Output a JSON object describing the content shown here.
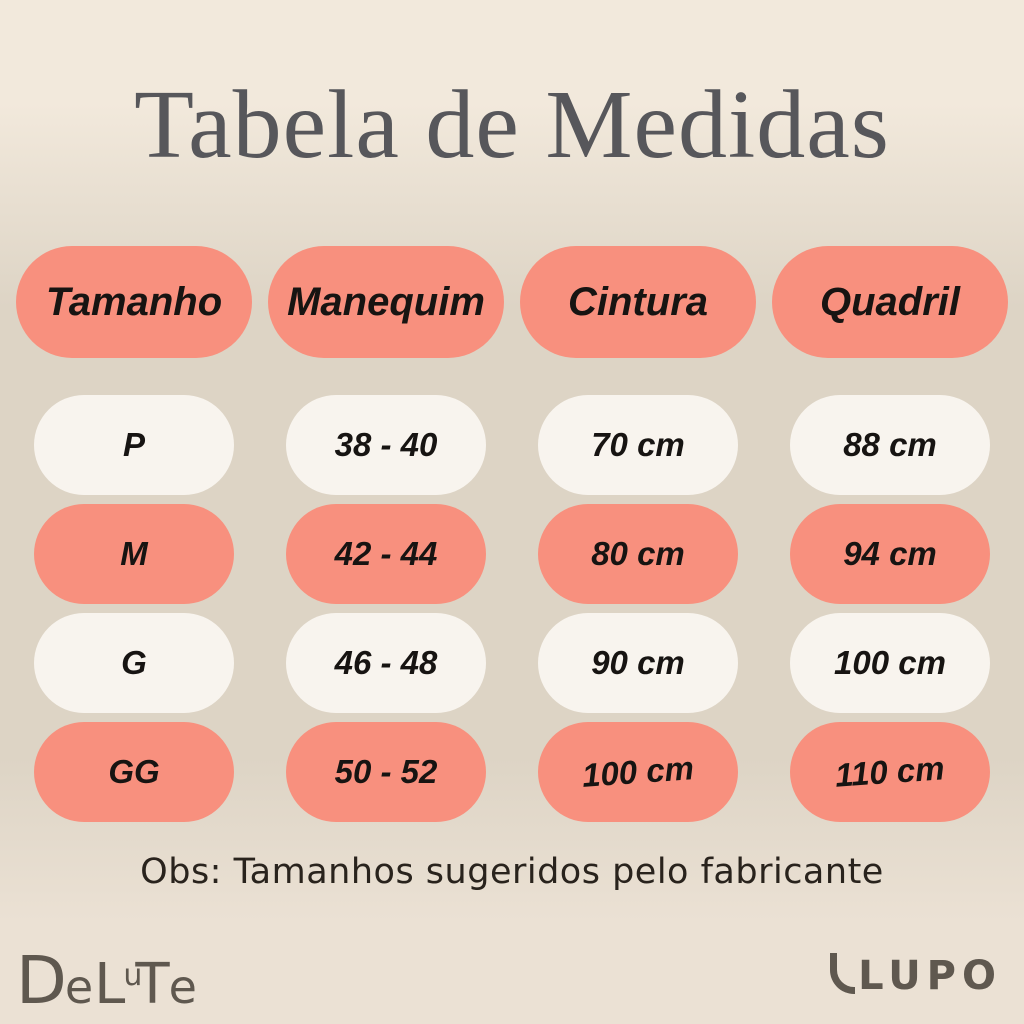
{
  "title": "Tabela de Medidas",
  "note": "Obs: Tamanhos sugeridos pelo fabricante",
  "brands": {
    "left": "DeLuTe",
    "right": "LUPO"
  },
  "colors": {
    "coral": "#f8907e",
    "pill_light": "#f8f4ee",
    "bg_top": "#f2e9dc",
    "bg_mid": "#ddd4c5",
    "bg_bottom": "#ebe1d4",
    "title_text": "#57575b",
    "pill_text": "#171412",
    "note_text": "#29231d",
    "logo_text": "#5f584f"
  },
  "chart_data": {
    "type": "table",
    "title": "Tabela de Medidas",
    "columns": [
      "Tamanho",
      "Manequim",
      "Cintura",
      "Quadril"
    ],
    "rows": [
      {
        "variant": "light",
        "values": [
          "P",
          "38 - 40",
          "70 cm",
          "88 cm"
        ]
      },
      {
        "variant": "coral",
        "values": [
          "M",
          "42 - 44",
          "80 cm",
          "94 cm"
        ]
      },
      {
        "variant": "light",
        "values": [
          "G",
          "46 - 48",
          "90 cm",
          "100 cm"
        ]
      },
      {
        "variant": "coral",
        "values": [
          "GG",
          "50 - 52",
          "100 cm",
          "110 cm"
        ]
      }
    ]
  }
}
